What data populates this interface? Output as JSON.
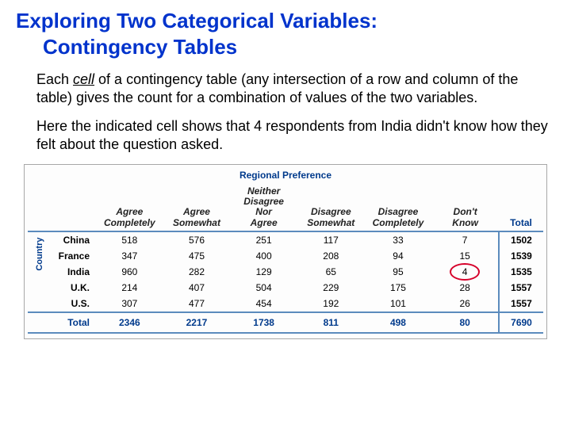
{
  "title": {
    "line1": "Exploring Two Categorical Variables:",
    "line2": "Contingency Tables"
  },
  "para1_a": "Each ",
  "para1_cell": "cell",
  "para1_b": " of a contingency table (any intersection of a row and column of the table) gives the count for a combination of values of the two variables.",
  "para2": "Here the indicated cell shows that 4 respondents from India didn't know how they felt about the question asked.",
  "table": {
    "top_header": "Regional Preference",
    "side_header": "Country",
    "columns": [
      "Agree Completely",
      "Agree Somewhat",
      "Neither Disagree Nor Agree",
      "Disagree Somewhat",
      "Disagree Completely",
      "Don't Know",
      "Total"
    ],
    "rows": [
      {
        "label": "China",
        "vals": [
          "518",
          "576",
          "251",
          "117",
          "33",
          "7",
          "1502"
        ]
      },
      {
        "label": "France",
        "vals": [
          "347",
          "475",
          "400",
          "208",
          "94",
          "15",
          "1539"
        ]
      },
      {
        "label": "India",
        "vals": [
          "960",
          "282",
          "129",
          "65",
          "95",
          "4",
          "1535"
        ]
      },
      {
        "label": "U.K.",
        "vals": [
          "214",
          "407",
          "504",
          "229",
          "175",
          "28",
          "1557"
        ]
      },
      {
        "label": "U.S.",
        "vals": [
          "307",
          "477",
          "454",
          "192",
          "101",
          "26",
          "1557"
        ]
      }
    ],
    "total_label": "Total",
    "totals": [
      "2346",
      "2217",
      "1738",
      "811",
      "498",
      "80",
      "7690"
    ],
    "circled_row": 2,
    "circled_col": 5,
    "colors": {
      "title": "#0033cc",
      "rule": "#5b8bbd",
      "header_text": "#003a8c",
      "circle": "#d6002a",
      "border": "#a8a8a8",
      "bg": "#ffffff"
    },
    "font_sizes": {
      "title": 26,
      "body": 18,
      "table": 12,
      "header_label": 12
    }
  }
}
